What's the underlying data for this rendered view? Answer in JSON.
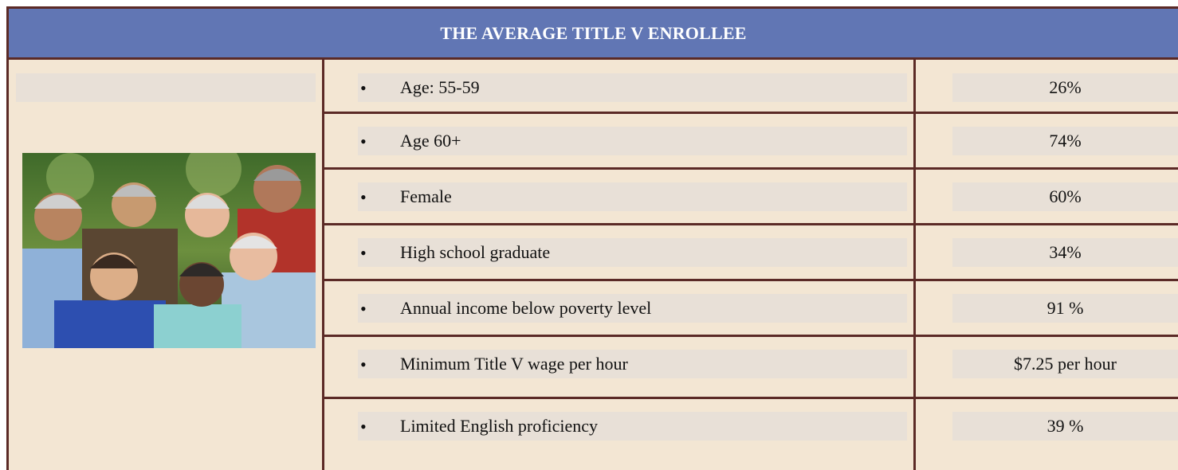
{
  "header": {
    "title": "THE AVERAGE TITLE V ENROLLEE"
  },
  "table": {
    "rows": [
      [
        "Age: 55-59",
        "26%"
      ],
      [
        "Age 60+",
        "74%"
      ],
      [
        "Female",
        "60%"
      ],
      [
        "High school graduate",
        "34%"
      ],
      [
        "Annual income below poverty level",
        "91 %"
      ],
      [
        "Minimum Title V wage per hour",
        "$7.25 per hour"
      ],
      [
        "Limited English proficiency",
        "39 %"
      ]
    ]
  }
}
